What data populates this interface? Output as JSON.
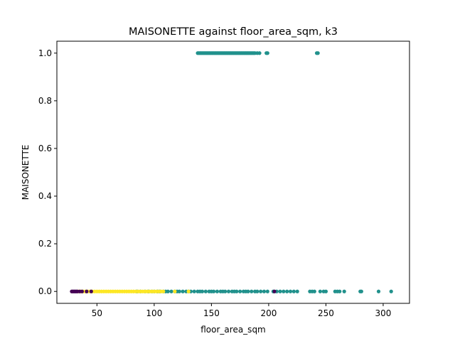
{
  "chart_data": {
    "type": "scatter",
    "title": "MAISONETTE against floor_area_sqm, k3",
    "xlabel": "floor_area_sqm",
    "ylabel": "MAISONETTE",
    "xlim": [
      15,
      323
    ],
    "ylim": [
      -0.05,
      1.05
    ],
    "xticks": [
      50,
      100,
      150,
      200,
      250,
      300
    ],
    "yticks": [
      0.0,
      0.2,
      0.4,
      0.6,
      0.8,
      1.0
    ],
    "xtick_labels": [
      "50",
      "100",
      "150",
      "200",
      "250",
      "300"
    ],
    "ytick_labels": [
      "0.0",
      "0.2",
      "0.4",
      "0.6",
      "0.8",
      "1.0"
    ],
    "grid": false,
    "legend": "none",
    "colors": {
      "cluster_0": "#440154",
      "cluster_1": "#21918c",
      "cluster_2": "#fde725"
    },
    "series": [
      {
        "cluster": 1,
        "color": "#21918c",
        "x": [
          85,
          88,
          92,
          95,
          98,
          100,
          103,
          105,
          108,
          110,
          112,
          115,
          118,
          120,
          122,
          125,
          128,
          130,
          132,
          135,
          138,
          140,
          142,
          145,
          148,
          150,
          152,
          155,
          158,
          160,
          162,
          165,
          168,
          170,
          172,
          175,
          178,
          180,
          182,
          185,
          188,
          190,
          193,
          196,
          199,
          204,
          207,
          210,
          213,
          216,
          219,
          222,
          225,
          236,
          238,
          240,
          245,
          248,
          250,
          258,
          260,
          262,
          266,
          280,
          281,
          296,
          307
        ],
        "y": [
          0,
          0,
          0,
          0,
          0,
          0,
          0,
          0,
          0,
          0,
          0,
          0,
          0,
          0,
          0,
          0,
          0,
          0,
          0,
          0,
          0,
          0,
          0,
          0,
          0,
          0,
          0,
          0,
          0,
          0,
          0,
          0,
          0,
          0,
          0,
          0,
          0,
          0,
          0,
          0,
          0,
          0,
          0,
          0,
          0,
          0,
          0,
          0,
          0,
          0,
          0,
          0,
          0,
          0,
          0,
          0,
          0,
          0,
          0,
          0,
          0,
          0,
          0,
          0,
          0,
          0,
          0
        ]
      },
      {
        "cluster": 1,
        "color": "#21918c",
        "x": [
          138,
          139,
          140,
          141,
          142,
          143,
          144,
          145,
          146,
          147,
          148,
          149,
          150,
          151,
          152,
          153,
          154,
          155,
          156,
          157,
          158,
          159,
          160,
          161,
          162,
          163,
          164,
          165,
          166,
          167,
          168,
          169,
          170,
          171,
          172,
          173,
          174,
          175,
          176,
          177,
          178,
          179,
          180,
          181,
          182,
          183,
          184,
          185,
          186,
          187,
          188,
          190,
          192,
          198,
          199,
          242,
          243
        ],
        "y": [
          1,
          1,
          1,
          1,
          1,
          1,
          1,
          1,
          1,
          1,
          1,
          1,
          1,
          1,
          1,
          1,
          1,
          1,
          1,
          1,
          1,
          1,
          1,
          1,
          1,
          1,
          1,
          1,
          1,
          1,
          1,
          1,
          1,
          1,
          1,
          1,
          1,
          1,
          1,
          1,
          1,
          1,
          1,
          1,
          1,
          1,
          1,
          1,
          1,
          1,
          1,
          1,
          1,
          1,
          1,
          1,
          1
        ]
      },
      {
        "cluster": 2,
        "color": "#fde725",
        "x": [
          34,
          36,
          38,
          40,
          42,
          44,
          46,
          48,
          50,
          52,
          54,
          56,
          58,
          60,
          62,
          64,
          66,
          68,
          70,
          72,
          74,
          76,
          78,
          80,
          82,
          84,
          86,
          88,
          90,
          92,
          94,
          96,
          98,
          100,
          102,
          104,
          106,
          108,
          118,
          130
        ],
        "y": [
          0,
          0,
          0,
          0,
          0,
          0,
          0,
          0,
          0,
          0,
          0,
          0,
          0,
          0,
          0,
          0,
          0,
          0,
          0,
          0,
          0,
          0,
          0,
          0,
          0,
          0,
          0,
          0,
          0,
          0,
          0,
          0,
          0,
          0,
          0,
          0,
          0,
          0,
          0,
          0
        ]
      },
      {
        "cluster": 0,
        "color": "#440154",
        "x": [
          28,
          29,
          30,
          31,
          32,
          33,
          35,
          37,
          41,
          45,
          205
        ],
        "y": [
          0,
          0,
          0,
          0,
          0,
          0,
          0,
          0,
          0,
          0,
          0
        ]
      }
    ]
  }
}
